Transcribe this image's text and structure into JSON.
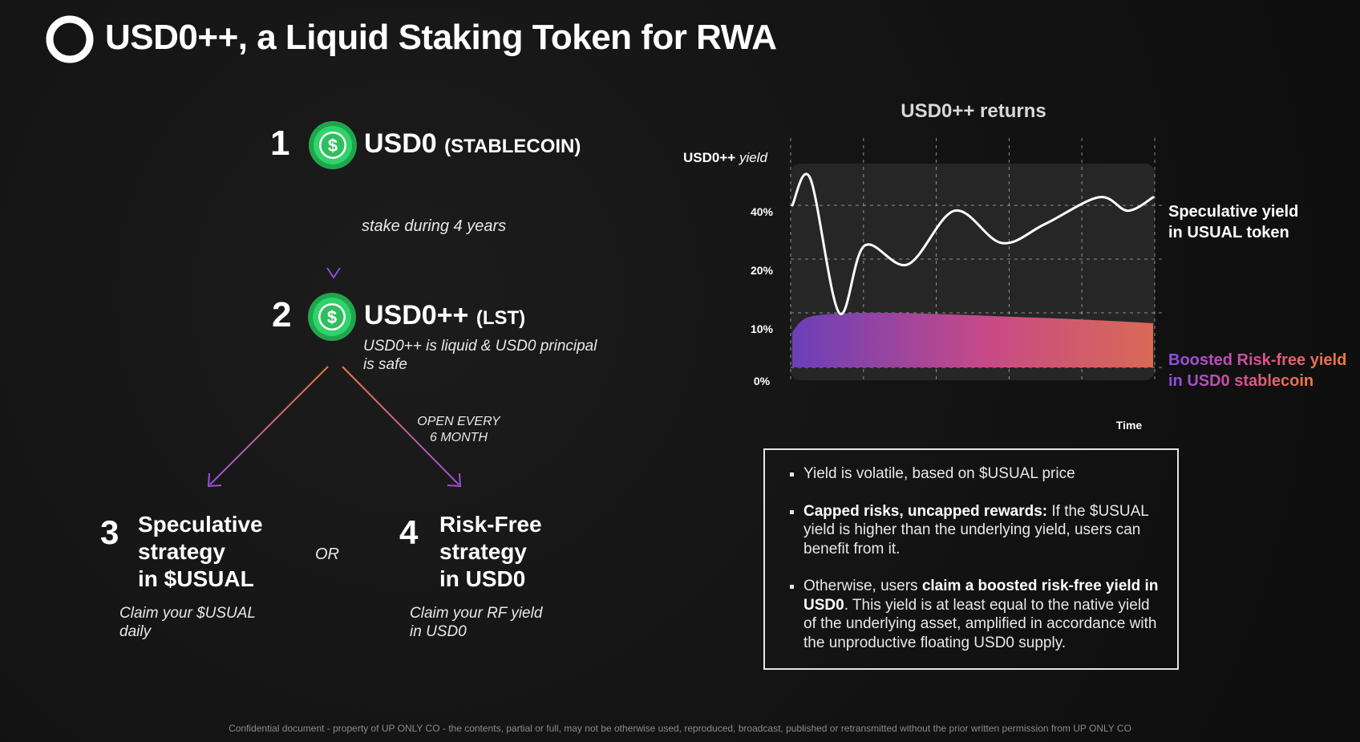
{
  "title": "USD0++, a Liquid Staking Token for RWA",
  "steps": [
    {
      "number": "1",
      "token": "USD0",
      "tag": "(STABLECOIN)",
      "icon": "dollar-coin-icon"
    },
    {
      "number": "2",
      "token": "USD0++",
      "tag": "(LST)",
      "icon": "dollar-coin-icon",
      "note_line1": "USD0++ is liquid & USD0 principal",
      "note_line2": "is safe"
    }
  ],
  "stake_label": "stake during 4 years",
  "open_label_line1": "OPEN EVERY",
  "open_label_line2": "6 MONTH",
  "or_label": "OR",
  "strategies": [
    {
      "number": "3",
      "line1": "Speculative",
      "line2": "strategy",
      "line3": "in $USUAL",
      "claim_line1": "Claim your $USUAL",
      "claim_line2": "daily"
    },
    {
      "number": "4",
      "line1": "Risk-Free",
      "line2": "strategy",
      "line3": "in USD0",
      "claim_line1": "Claim your RF yield",
      "claim_line2": "in USD0"
    }
  ],
  "chart_data": {
    "type": "area",
    "title": "USD0++ returns",
    "ylabel_bold": "USD0++",
    "ylabel_italic": "yield",
    "xlabel": "Time",
    "y_ticks": [
      "40%",
      "20%",
      "10%",
      "0%"
    ],
    "grid": "dashed",
    "series": [
      {
        "name_line1": "Speculative yield",
        "name_line2": "in USUAL token",
        "color": "#ffffff",
        "x": [
          0,
          0.05,
          0.13,
          0.2,
          0.32,
          0.45,
          0.58,
          0.7,
          0.85,
          0.93,
          1.0
        ],
        "y": [
          40,
          50,
          10,
          25,
          19,
          38,
          26,
          33,
          43,
          38,
          43
        ]
      },
      {
        "name_line1": "Boosted Risk-free yield",
        "name_line2": "in USD0 stablecoin",
        "colors": [
          "#6a3fb8",
          "#c94a86",
          "#d86a55"
        ],
        "x": [
          0,
          0.05,
          0.2,
          0.4,
          0.6,
          0.8,
          1.0
        ],
        "y": [
          6.5,
          9.3,
          10,
          9.8,
          9.3,
          8.8,
          8.1
        ]
      }
    ]
  },
  "info": {
    "bullet1": "Yield is volatile, based on $USUAL price",
    "bullet2_bold": "Capped risks, uncapped rewards:",
    "bullet2_text": " If the $USUAL yield is higher than the underlying yield, users can benefit from it.",
    "bullet3_pre": "Otherwise, users ",
    "bullet3_bold": "claim a boosted risk-free yield in USD0",
    "bullet3_text": ". This yield is at least equal to the native yield of the underlying asset, amplified in accordance with the unproductive floating USD0 supply."
  },
  "footer": "Confidential document - property of UP ONLY CO - the contents, partial or full, may not be otherwise used, reproduced, broadcast, published or retransmitted without the prior written permission from UP ONLY CO",
  "colors": {
    "coin_green": "#22c55e",
    "purple": "#7b4fd0",
    "orange": "#f07a3a",
    "pink": "#e0559a"
  }
}
